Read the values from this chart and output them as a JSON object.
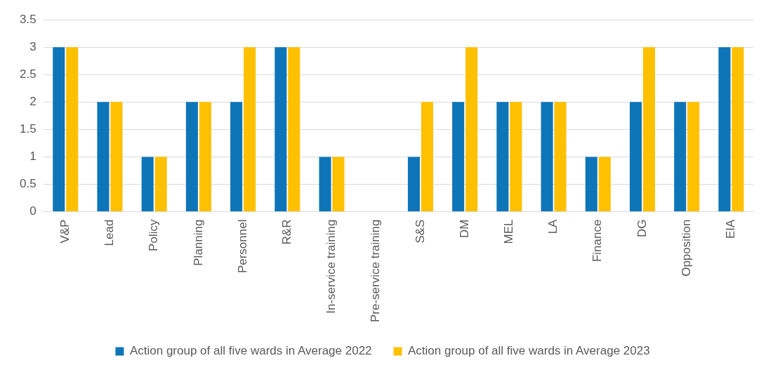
{
  "chart_data": {
    "type": "bar",
    "categories": [
      "V&P",
      "Lead",
      "Policy",
      "Planning",
      "Personnel",
      "R&R",
      "In-service training",
      "Pre-service training",
      "S&S",
      "DM",
      "MEL",
      "LA",
      "Finance",
      "DG",
      "Opposition",
      "EIA"
    ],
    "series": [
      {
        "name": "Action group of all five wards in Average 2022",
        "color": "#0e75b8",
        "values": [
          3,
          2,
          1,
          2,
          2,
          3,
          1,
          0,
          1,
          2,
          2,
          2,
          1,
          2,
          2,
          3
        ]
      },
      {
        "name": "Action group of all five wards in Average 2023",
        "color": "#ffc000",
        "values": [
          3,
          2,
          1,
          2,
          3,
          3,
          1,
          0,
          2,
          3,
          2,
          2,
          1,
          3,
          2,
          3
        ]
      }
    ],
    "ylim": [
      0,
      3.5
    ],
    "yticks": [
      0,
      0.5,
      1,
      1.5,
      2,
      2.5,
      3,
      3.5
    ],
    "grid": "y",
    "legend": "bottom"
  }
}
